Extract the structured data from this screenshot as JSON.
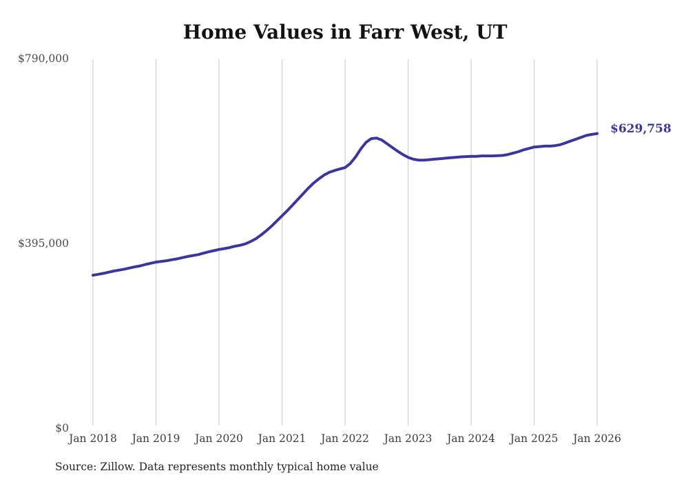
{
  "source_note": "Source: Zillow. Data represents monthly typical home value",
  "colors": {
    "line": "#3b35a0",
    "grid": "#c6c6c6",
    "title_text": "#131313",
    "axis_text": "#3c3c3c"
  },
  "chart_data": {
    "type": "line",
    "title": "Home Values in Farr West, UT",
    "xlabel": "",
    "ylabel": "",
    "x_start": "2018-01",
    "x_interval": "month",
    "x_tick_labels": [
      "Jan 2018",
      "Jan 2019",
      "Jan 2020",
      "Jan 2021",
      "Jan 2022",
      "Jan 2023",
      "Jan 2024",
      "Jan 2025",
      "Jan 2026"
    ],
    "y_ticks": [
      0,
      395000,
      790000
    ],
    "y_tick_labels": [
      "$0",
      "$395,000",
      "$790,000"
    ],
    "ylim": [
      0,
      790000
    ],
    "grid": "vertical-only",
    "legend": "none",
    "end_label": "$629,758",
    "latest_value": 629758,
    "series": [
      {
        "name": "Typical home value",
        "values": [
          327000,
          329000,
          331000,
          333500,
          336000,
          338000,
          340000,
          342500,
          345000,
          347000,
          350000,
          352500,
          355000,
          356500,
          358000,
          360000,
          362000,
          364500,
          367000,
          369000,
          371000,
          374000,
          377000,
          379500,
          382000,
          384000,
          386000,
          389000,
          391000,
          394000,
          399000,
          405000,
          413000,
          422000,
          432000,
          443000,
          454000,
          465000,
          477000,
          489000,
          501000,
          513000,
          524000,
          533000,
          541000,
          547000,
          551000,
          554000,
          557000,
          566000,
          580000,
          597000,
          611000,
          619000,
          620000,
          616000,
          608000,
          600000,
          592000,
          585000,
          579000,
          575000,
          573000,
          573000,
          574000,
          575000,
          576000,
          577000,
          578000,
          579000,
          580000,
          580500,
          581000,
          581000,
          582000,
          582000,
          582000,
          582500,
          583000,
          585000,
          588000,
          591000,
          595000,
          598000,
          601000,
          602000,
          603000,
          603000,
          604000,
          606000,
          610000,
          614000,
          618000,
          622000,
          626000,
          628000,
          629758
        ]
      }
    ]
  }
}
